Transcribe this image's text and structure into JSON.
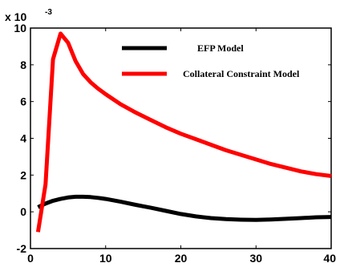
{
  "chart_data": {
    "type": "line",
    "title": "",
    "xlabel": "",
    "ylabel": "",
    "xlim": [
      0,
      40
    ],
    "ylim": [
      -2,
      10
    ],
    "y_scale_label": "x 10",
    "y_scale_exponent": "-3",
    "x_ticks": [
      "0",
      "10",
      "20",
      "30",
      "40"
    ],
    "y_ticks": [
      "-2",
      "0",
      "2",
      "4",
      "6",
      "8",
      "10"
    ],
    "grid": false,
    "legend_placement": "top-right",
    "series": [
      {
        "name": "EFP Model",
        "color": "#000000",
        "x": [
          1,
          2,
          3,
          4,
          5,
          6,
          7,
          8,
          9,
          10,
          12,
          14,
          16,
          18,
          20,
          22,
          24,
          26,
          28,
          30,
          32,
          34,
          36,
          38,
          40
        ],
        "y": [
          0.25,
          0.45,
          0.6,
          0.7,
          0.78,
          0.82,
          0.82,
          0.8,
          0.76,
          0.7,
          0.55,
          0.38,
          0.22,
          0.05,
          -0.12,
          -0.25,
          -0.34,
          -0.4,
          -0.43,
          -0.44,
          -0.42,
          -0.38,
          -0.34,
          -0.3,
          -0.28
        ]
      },
      {
        "name": "Collateral Constraint Model",
        "color": "#ff0000",
        "x": [
          1,
          2,
          3,
          4,
          5,
          6,
          7,
          8,
          9,
          10,
          12,
          14,
          16,
          18,
          20,
          22,
          24,
          26,
          28,
          30,
          32,
          34,
          36,
          38,
          40
        ],
        "y": [
          -1.1,
          1.5,
          8.3,
          9.7,
          9.2,
          8.2,
          7.5,
          7.05,
          6.7,
          6.4,
          5.85,
          5.4,
          5.0,
          4.6,
          4.25,
          3.95,
          3.65,
          3.35,
          3.1,
          2.85,
          2.6,
          2.4,
          2.2,
          2.05,
          1.95
        ]
      }
    ]
  }
}
